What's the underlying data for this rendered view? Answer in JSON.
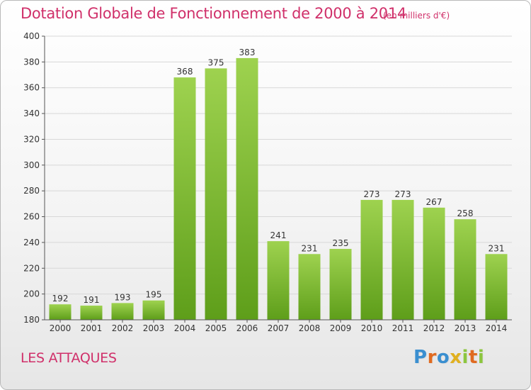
{
  "header": {
    "title": "Dotation Globale de Fonctionnement de 2000 à 2014",
    "unit_note": "(en milliers d'€)"
  },
  "commune_name": "LES ATTAQUES",
  "logo": {
    "letters": [
      {
        "char": "P",
        "color": "#3a8fd0"
      },
      {
        "char": "r",
        "color": "#e06a20"
      },
      {
        "char": "o",
        "color": "#3a8fd0"
      },
      {
        "char": "x",
        "color": "#e0b020"
      },
      {
        "char": "i",
        "color": "#8cc63f"
      },
      {
        "char": "t",
        "color": "#e06a20"
      },
      {
        "char": "i",
        "color": "#8cc63f"
      }
    ]
  },
  "chart_data": {
    "type": "bar",
    "title": "Dotation Globale de Fonctionnement de 2000 à 2014",
    "subtitle": "(en milliers d'€)",
    "categories": [
      "2000",
      "2001",
      "2002",
      "2003",
      "2004",
      "2005",
      "2006",
      "2007",
      "2008",
      "2009",
      "2010",
      "2011",
      "2012",
      "2013",
      "2014"
    ],
    "values": [
      192,
      191,
      193,
      195,
      368,
      375,
      383,
      241,
      231,
      235,
      273,
      273,
      267,
      258,
      231
    ],
    "ylim": [
      180,
      400
    ],
    "yticks": [
      180,
      200,
      220,
      240,
      260,
      280,
      300,
      320,
      340,
      360,
      380,
      400
    ],
    "grid": true,
    "xlabel": "",
    "ylabel": "",
    "colors": {
      "bar_top": "#9ed24f",
      "bar_bottom": "#5e9e1a",
      "grid": "#d8d8d8",
      "axis": "#555555",
      "text": "#333333"
    }
  }
}
